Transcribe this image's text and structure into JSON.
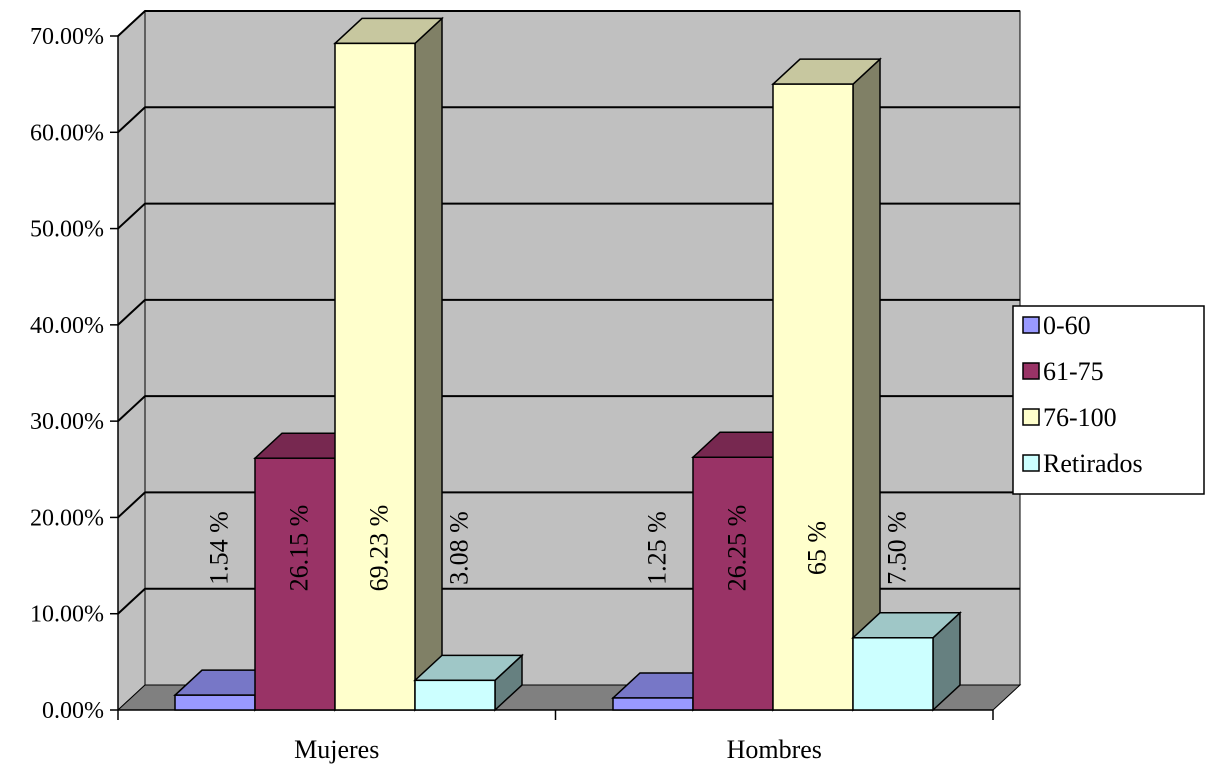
{
  "chart_data": {
    "type": "bar",
    "categories": [
      "Mujeres",
      "Hombres"
    ],
    "series": [
      {
        "name": "0-60",
        "values": [
          1.54,
          1.25
        ],
        "labels": [
          "1.54 %",
          "1.25 %"
        ]
      },
      {
        "name": "61-75",
        "values": [
          26.15,
          26.25
        ],
        "labels": [
          "26.15 %",
          "26.25 %"
        ]
      },
      {
        "name": "76-100",
        "values": [
          69.23,
          65
        ],
        "labels": [
          "69.23 %",
          "65 %"
        ]
      },
      {
        "name": "Retirados",
        "values": [
          3.08,
          7.5
        ],
        "labels": [
          "3.08 %",
          "7.50 %"
        ]
      }
    ],
    "ylim": [
      0,
      70
    ],
    "y_ticks": [
      "0.00%",
      "10.00%",
      "20.00%",
      "30.00%",
      "40.00%",
      "50.00%",
      "60.00%",
      "70.00%"
    ],
    "grid": true,
    "legend_position": "right",
    "style": "3d-clustered-column",
    "colors": {
      "0-60": "#9999ff",
      "61-75": "#993366",
      "76-100": "#ffffcc",
      "Retirados": "#ccffff",
      "wall": "#c0c0c0",
      "floor": "#808080"
    }
  }
}
